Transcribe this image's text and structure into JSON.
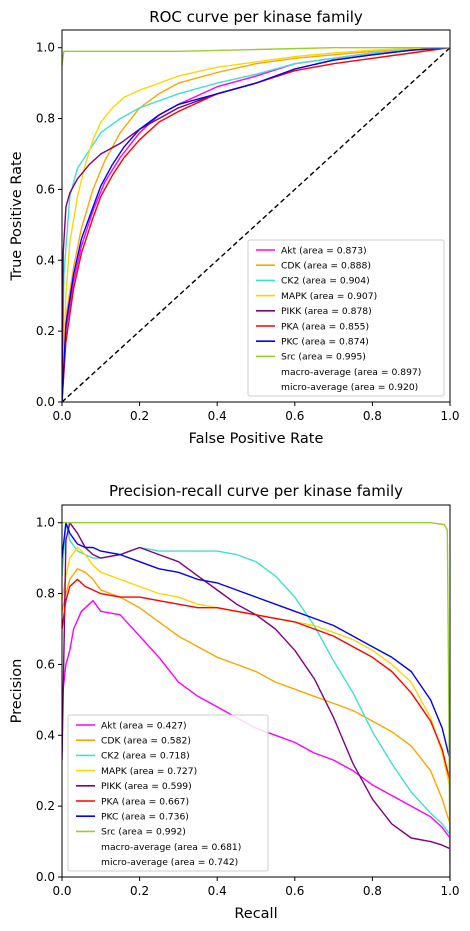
{
  "chart_data": [
    {
      "type": "line",
      "title": "ROC curve per kinase family",
      "xlabel": "False Positive Rate",
      "ylabel": "True Positive Rate",
      "xlim": [
        0,
        1
      ],
      "ylim": [
        0,
        1.05
      ],
      "xticks": [
        "0.0",
        "0.2",
        "0.4",
        "0.6",
        "0.8",
        "1.0"
      ],
      "yticks": [
        "0.0",
        "0.2",
        "0.4",
        "0.6",
        "0.8",
        "1.0"
      ],
      "legend_position": "lower-right",
      "grid": false,
      "reference_line": {
        "x": [
          0,
          1
        ],
        "y": [
          0,
          1
        ],
        "style": "dashed",
        "color": "#000000"
      },
      "series": [
        {
          "name": "Akt (area = 0.873)",
          "color": "#ff00ff",
          "x": [
            0,
            0.01,
            0.03,
            0.05,
            0.08,
            0.11,
            0.15,
            0.2,
            0.25,
            0.3,
            0.4,
            0.5,
            0.6,
            0.7,
            0.8,
            0.9,
            1.0
          ],
          "y": [
            0,
            0.2,
            0.34,
            0.44,
            0.54,
            0.62,
            0.69,
            0.76,
            0.81,
            0.84,
            0.89,
            0.92,
            0.955,
            0.97,
            0.985,
            0.995,
            1.0
          ]
        },
        {
          "name": "CDK (area = 0.888)",
          "color": "#ffa500",
          "x": [
            0,
            0.01,
            0.03,
            0.05,
            0.08,
            0.11,
            0.15,
            0.2,
            0.25,
            0.3,
            0.4,
            0.5,
            0.6,
            0.7,
            0.8,
            0.9,
            1.0
          ],
          "y": [
            0,
            0.24,
            0.38,
            0.49,
            0.6,
            0.68,
            0.76,
            0.83,
            0.87,
            0.9,
            0.93,
            0.955,
            0.97,
            0.98,
            0.99,
            0.998,
            1.0
          ]
        },
        {
          "name": "CK2 (area = 0.904)",
          "color": "#40e0d0",
          "x": [
            0,
            0.005,
            0.02,
            0.04,
            0.07,
            0.1,
            0.15,
            0.2,
            0.3,
            0.4,
            0.5,
            0.6,
            0.7,
            0.8,
            0.9,
            1.0
          ],
          "y": [
            0,
            0.36,
            0.58,
            0.66,
            0.71,
            0.76,
            0.8,
            0.83,
            0.87,
            0.9,
            0.925,
            0.955,
            0.97,
            0.985,
            0.995,
            1.0
          ]
        },
        {
          "name": "MAPK (area = 0.907)",
          "color": "#ffd700",
          "x": [
            0,
            0.01,
            0.02,
            0.04,
            0.06,
            0.08,
            0.1,
            0.13,
            0.16,
            0.2,
            0.3,
            0.4,
            0.5,
            0.6,
            0.7,
            0.8,
            0.9,
            1.0
          ],
          "y": [
            0,
            0.3,
            0.45,
            0.58,
            0.67,
            0.74,
            0.79,
            0.83,
            0.86,
            0.88,
            0.92,
            0.945,
            0.96,
            0.975,
            0.985,
            0.993,
            0.998,
            1.0
          ]
        },
        {
          "name": "PIKK (area = 0.878)",
          "color": "#800080",
          "x": [
            0,
            0.003,
            0.01,
            0.02,
            0.04,
            0.07,
            0.1,
            0.15,
            0.2,
            0.3,
            0.4,
            0.5,
            0.6,
            0.7,
            0.8,
            0.9,
            1.0
          ],
          "y": [
            0,
            0.42,
            0.55,
            0.59,
            0.63,
            0.67,
            0.7,
            0.73,
            0.77,
            0.83,
            0.87,
            0.9,
            0.94,
            0.965,
            0.98,
            0.993,
            1.0
          ]
        },
        {
          "name": "PKA (area = 0.855)",
          "color": "#ff0000",
          "x": [
            0,
            0.01,
            0.03,
            0.05,
            0.08,
            0.1,
            0.13,
            0.16,
            0.2,
            0.25,
            0.3,
            0.4,
            0.5,
            0.6,
            0.7,
            0.8,
            0.9,
            1.0
          ],
          "y": [
            0,
            0.17,
            0.32,
            0.42,
            0.52,
            0.58,
            0.64,
            0.69,
            0.74,
            0.79,
            0.82,
            0.87,
            0.9,
            0.935,
            0.955,
            0.97,
            0.985,
            1.0
          ]
        },
        {
          "name": "PKC (area = 0.874)",
          "color": "#0000ff",
          "x": [
            0,
            0.01,
            0.03,
            0.05,
            0.08,
            0.1,
            0.13,
            0.16,
            0.2,
            0.25,
            0.3,
            0.4,
            0.5,
            0.6,
            0.7,
            0.8,
            0.9,
            1.0
          ],
          "y": [
            0,
            0.22,
            0.36,
            0.46,
            0.55,
            0.61,
            0.67,
            0.72,
            0.77,
            0.81,
            0.84,
            0.87,
            0.9,
            0.94,
            0.965,
            0.98,
            0.993,
            1.0
          ]
        },
        {
          "name": "Src (area = 0.995)",
          "color": "#9acd32",
          "x": [
            0,
            0.002,
            0.005,
            0.05,
            0.3,
            0.5,
            0.7,
            0.9,
            1.0
          ],
          "y": [
            0.95,
            0.97,
            0.99,
            0.99,
            0.99,
            0.995,
            1.0,
            1.0,
            1.0
          ]
        }
      ],
      "legend_extra": [
        "macro-average (area = 0.897)",
        "micro-average (area = 0.920)"
      ]
    },
    {
      "type": "line",
      "title": "Precision-recall curve per kinase family",
      "xlabel": "Recall",
      "ylabel": "Precision",
      "xlim": [
        0,
        1
      ],
      "ylim": [
        0,
        1.05
      ],
      "xticks": [
        "0.0",
        "0.2",
        "0.4",
        "0.6",
        "0.8",
        "1.0"
      ],
      "yticks": [
        "0.0",
        "0.2",
        "0.4",
        "0.6",
        "0.8",
        "1.0"
      ],
      "legend_position": "lower-left",
      "grid": false,
      "series": [
        {
          "name": "Akt (area = 0.427)",
          "color": "#ff00ff",
          "x": [
            0,
            0.01,
            0.02,
            0.03,
            0.05,
            0.08,
            0.1,
            0.15,
            0.2,
            0.25,
            0.3,
            0.35,
            0.4,
            0.45,
            0.5,
            0.55,
            0.6,
            0.65,
            0.7,
            0.75,
            0.8,
            0.85,
            0.9,
            0.95,
            0.98,
            1.0
          ],
          "y": [
            0.5,
            0.6,
            0.64,
            0.7,
            0.75,
            0.78,
            0.75,
            0.74,
            0.68,
            0.62,
            0.55,
            0.51,
            0.48,
            0.45,
            0.42,
            0.4,
            0.38,
            0.35,
            0.33,
            0.3,
            0.26,
            0.23,
            0.2,
            0.17,
            0.14,
            0.11
          ]
        },
        {
          "name": "CDK (area = 0.582)",
          "color": "#ffa500",
          "x": [
            0,
            0.01,
            0.02,
            0.04,
            0.06,
            0.08,
            0.1,
            0.15,
            0.2,
            0.25,
            0.3,
            0.35,
            0.4,
            0.45,
            0.5,
            0.55,
            0.6,
            0.65,
            0.7,
            0.75,
            0.8,
            0.85,
            0.9,
            0.95,
            0.98,
            1.0
          ],
          "y": [
            0.75,
            0.8,
            0.84,
            0.87,
            0.86,
            0.84,
            0.81,
            0.79,
            0.76,
            0.72,
            0.68,
            0.65,
            0.62,
            0.6,
            0.58,
            0.55,
            0.53,
            0.51,
            0.49,
            0.47,
            0.44,
            0.41,
            0.37,
            0.3,
            0.22,
            0.15
          ]
        },
        {
          "name": "CK2 (area = 0.718)",
          "color": "#40e0d0",
          "x": [
            0,
            0.01,
            0.02,
            0.04,
            0.06,
            0.08,
            0.1,
            0.15,
            0.2,
            0.25,
            0.3,
            0.35,
            0.4,
            0.45,
            0.5,
            0.55,
            0.6,
            0.65,
            0.7,
            0.75,
            0.8,
            0.85,
            0.9,
            0.95,
            0.98,
            1.0
          ],
          "y": [
            0.85,
            1.0,
            0.95,
            0.92,
            0.91,
            0.9,
            0.9,
            0.91,
            0.93,
            0.92,
            0.92,
            0.92,
            0.92,
            0.91,
            0.89,
            0.85,
            0.79,
            0.71,
            0.61,
            0.52,
            0.41,
            0.32,
            0.24,
            0.18,
            0.15,
            0.12
          ]
        },
        {
          "name": "MAPK (area = 0.727)",
          "color": "#ffd700",
          "x": [
            0,
            0.01,
            0.02,
            0.04,
            0.06,
            0.08,
            0.1,
            0.15,
            0.2,
            0.25,
            0.3,
            0.35,
            0.4,
            0.45,
            0.5,
            0.55,
            0.6,
            0.65,
            0.7,
            0.75,
            0.8,
            0.85,
            0.9,
            0.95,
            0.98,
            1.0
          ],
          "y": [
            0.78,
            0.85,
            0.9,
            0.93,
            0.91,
            0.88,
            0.86,
            0.84,
            0.82,
            0.8,
            0.79,
            0.77,
            0.76,
            0.75,
            0.74,
            0.73,
            0.72,
            0.71,
            0.69,
            0.67,
            0.64,
            0.6,
            0.55,
            0.45,
            0.35,
            0.25
          ]
        },
        {
          "name": "PIKK (area = 0.599)",
          "color": "#800080",
          "x": [
            0,
            0.01,
            0.02,
            0.04,
            0.06,
            0.08,
            0.1,
            0.15,
            0.2,
            0.25,
            0.3,
            0.35,
            0.4,
            0.45,
            0.5,
            0.55,
            0.6,
            0.65,
            0.7,
            0.75,
            0.8,
            0.85,
            0.9,
            0.95,
            0.98,
            1.0
          ],
          "y": [
            0.33,
            0.95,
            1.0,
            0.97,
            0.93,
            0.91,
            0.9,
            0.91,
            0.93,
            0.91,
            0.89,
            0.85,
            0.81,
            0.77,
            0.74,
            0.7,
            0.64,
            0.56,
            0.45,
            0.32,
            0.22,
            0.15,
            0.11,
            0.1,
            0.09,
            0.08
          ]
        },
        {
          "name": "PKA (area = 0.667)",
          "color": "#ff0000",
          "x": [
            0,
            0.01,
            0.02,
            0.04,
            0.06,
            0.08,
            0.1,
            0.15,
            0.2,
            0.25,
            0.3,
            0.35,
            0.4,
            0.45,
            0.5,
            0.55,
            0.6,
            0.65,
            0.7,
            0.75,
            0.8,
            0.85,
            0.9,
            0.95,
            0.98,
            1.0
          ],
          "y": [
            0.7,
            0.78,
            0.82,
            0.84,
            0.82,
            0.81,
            0.8,
            0.79,
            0.79,
            0.78,
            0.77,
            0.76,
            0.76,
            0.75,
            0.74,
            0.73,
            0.72,
            0.7,
            0.68,
            0.65,
            0.62,
            0.58,
            0.52,
            0.44,
            0.36,
            0.27
          ]
        },
        {
          "name": "PKC (area = 0.736)",
          "color": "#0000ff",
          "x": [
            0,
            0.01,
            0.02,
            0.04,
            0.06,
            0.08,
            0.1,
            0.15,
            0.2,
            0.25,
            0.3,
            0.35,
            0.4,
            0.45,
            0.5,
            0.55,
            0.6,
            0.65,
            0.7,
            0.75,
            0.8,
            0.85,
            0.9,
            0.95,
            0.98,
            1.0
          ],
          "y": [
            0.9,
            1.0,
            0.97,
            0.94,
            0.93,
            0.93,
            0.92,
            0.91,
            0.89,
            0.87,
            0.86,
            0.84,
            0.83,
            0.81,
            0.79,
            0.77,
            0.75,
            0.73,
            0.71,
            0.68,
            0.65,
            0.62,
            0.58,
            0.5,
            0.42,
            0.33
          ]
        },
        {
          "name": "Src (area = 0.992)",
          "color": "#9acd32",
          "x": [
            0,
            0.2,
            0.5,
            0.8,
            0.95,
            0.985,
            0.993,
            0.997,
            1.0
          ],
          "y": [
            1.0,
            1.0,
            1.0,
            1.0,
            1.0,
            0.995,
            0.98,
            0.5,
            0.0
          ]
        }
      ],
      "legend_extra": [
        "macro-average (area = 0.681)",
        "micro-average (area = 0.742)"
      ]
    }
  ]
}
